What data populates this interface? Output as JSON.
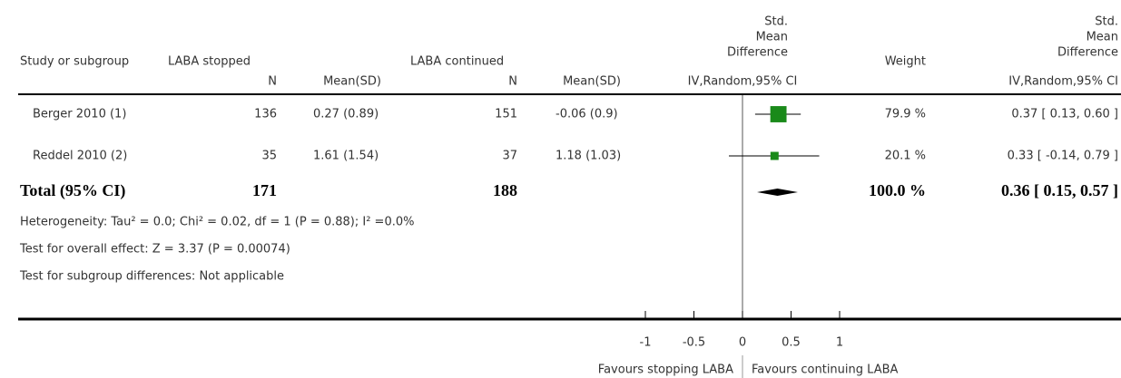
{
  "chart_data": {
    "type": "forest",
    "headers": {
      "study": "Study or subgroup",
      "group1": "LABA stopped",
      "group2": "LABA continued",
      "effect": [
        "Std.",
        "Mean",
        "Difference"
      ],
      "weight": "Weight",
      "effect_ci": [
        "Std.",
        "Mean",
        "Difference"
      ]
    },
    "subheaders": {
      "n1": "N",
      "mean1": "Mean(SD)",
      "n2": "N",
      "mean2": "Mean(SD)",
      "effect": "IV,Random,95% CI",
      "effect_ci": "IV,Random,95% CI"
    },
    "studies": [
      {
        "name": "Berger 2010 (1)",
        "n1": 136,
        "mean_sd1": "0.27 (0.89)",
        "n2": 151,
        "mean_sd2": "-0.06 (0.9)",
        "estimate": 0.37,
        "lower": 0.13,
        "upper": 0.6,
        "weight": 79.9,
        "weight_label": "79.9 %",
        "ci_label": "0.37 [ 0.13, 0.60 ]"
      },
      {
        "name": "Reddel 2010 (2)",
        "n1": 35,
        "mean_sd1": "1.61 (1.54)",
        "n2": 37,
        "mean_sd2": "1.18 (1.03)",
        "estimate": 0.33,
        "lower": -0.14,
        "upper": 0.79,
        "weight": 20.1,
        "weight_label": "20.1 %",
        "ci_label": "0.33 [ -0.14, 0.79 ]"
      }
    ],
    "total": {
      "name": "Total (95% CI)",
      "n1": 171,
      "n2": 188,
      "estimate": 0.36,
      "lower": 0.15,
      "upper": 0.57,
      "weight": 100.0,
      "weight_label": "100.0 %",
      "ci_label": "0.36 [ 0.15, 0.57 ]"
    },
    "notes": [
      "Heterogeneity: Tau² = 0.0; Chi² = 0.02, df = 1 (P = 0.88); I² =0.0%",
      "Test for overall effect: Z = 3.37 (P = 0.00074)",
      "Test for subgroup differences: Not applicable"
    ],
    "xlim": [
      -1,
      1
    ],
    "xticks": [
      -1,
      -0.5,
      0,
      0.5,
      1
    ],
    "favours_left": "Favours stopping LABA",
    "favours_right": "Favours continuing LABA",
    "color": "#1a8a1a"
  }
}
